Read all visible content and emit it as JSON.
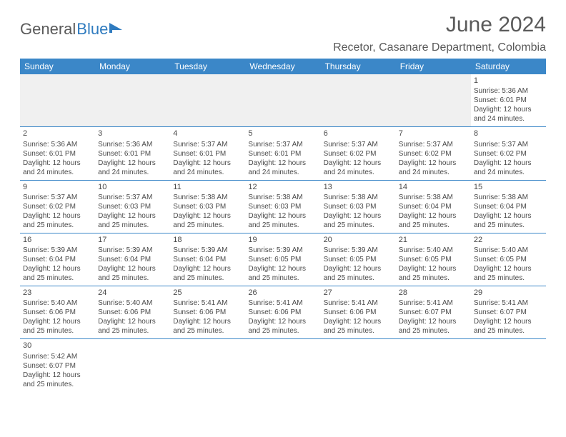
{
  "logo": {
    "text1": "General",
    "text2": "Blue"
  },
  "title": "June 2024",
  "location": "Recetor, Casanare Department, Colombia",
  "colors": {
    "header_bg": "#3b87c8",
    "header_text": "#ffffff",
    "text": "#5a5a5a",
    "cell_text": "#4a4a4a",
    "logo_gray": "#5a5a5a",
    "logo_blue": "#2f7bbf",
    "border": "#3b87c8",
    "empty_bg": "#f0f0f0"
  },
  "weekdays": [
    "Sunday",
    "Monday",
    "Tuesday",
    "Wednesday",
    "Thursday",
    "Friday",
    "Saturday"
  ],
  "weeks": [
    [
      null,
      null,
      null,
      null,
      null,
      null,
      {
        "n": "1",
        "sr": "Sunrise: 5:36 AM",
        "ss": "Sunset: 6:01 PM",
        "d1": "Daylight: 12 hours",
        "d2": "and 24 minutes."
      }
    ],
    [
      {
        "n": "2",
        "sr": "Sunrise: 5:36 AM",
        "ss": "Sunset: 6:01 PM",
        "d1": "Daylight: 12 hours",
        "d2": "and 24 minutes."
      },
      {
        "n": "3",
        "sr": "Sunrise: 5:36 AM",
        "ss": "Sunset: 6:01 PM",
        "d1": "Daylight: 12 hours",
        "d2": "and 24 minutes."
      },
      {
        "n": "4",
        "sr": "Sunrise: 5:37 AM",
        "ss": "Sunset: 6:01 PM",
        "d1": "Daylight: 12 hours",
        "d2": "and 24 minutes."
      },
      {
        "n": "5",
        "sr": "Sunrise: 5:37 AM",
        "ss": "Sunset: 6:01 PM",
        "d1": "Daylight: 12 hours",
        "d2": "and 24 minutes."
      },
      {
        "n": "6",
        "sr": "Sunrise: 5:37 AM",
        "ss": "Sunset: 6:02 PM",
        "d1": "Daylight: 12 hours",
        "d2": "and 24 minutes."
      },
      {
        "n": "7",
        "sr": "Sunrise: 5:37 AM",
        "ss": "Sunset: 6:02 PM",
        "d1": "Daylight: 12 hours",
        "d2": "and 24 minutes."
      },
      {
        "n": "8",
        "sr": "Sunrise: 5:37 AM",
        "ss": "Sunset: 6:02 PM",
        "d1": "Daylight: 12 hours",
        "d2": "and 24 minutes."
      }
    ],
    [
      {
        "n": "9",
        "sr": "Sunrise: 5:37 AM",
        "ss": "Sunset: 6:02 PM",
        "d1": "Daylight: 12 hours",
        "d2": "and 25 minutes."
      },
      {
        "n": "10",
        "sr": "Sunrise: 5:37 AM",
        "ss": "Sunset: 6:03 PM",
        "d1": "Daylight: 12 hours",
        "d2": "and 25 minutes."
      },
      {
        "n": "11",
        "sr": "Sunrise: 5:38 AM",
        "ss": "Sunset: 6:03 PM",
        "d1": "Daylight: 12 hours",
        "d2": "and 25 minutes."
      },
      {
        "n": "12",
        "sr": "Sunrise: 5:38 AM",
        "ss": "Sunset: 6:03 PM",
        "d1": "Daylight: 12 hours",
        "d2": "and 25 minutes."
      },
      {
        "n": "13",
        "sr": "Sunrise: 5:38 AM",
        "ss": "Sunset: 6:03 PM",
        "d1": "Daylight: 12 hours",
        "d2": "and 25 minutes."
      },
      {
        "n": "14",
        "sr": "Sunrise: 5:38 AM",
        "ss": "Sunset: 6:04 PM",
        "d1": "Daylight: 12 hours",
        "d2": "and 25 minutes."
      },
      {
        "n": "15",
        "sr": "Sunrise: 5:38 AM",
        "ss": "Sunset: 6:04 PM",
        "d1": "Daylight: 12 hours",
        "d2": "and 25 minutes."
      }
    ],
    [
      {
        "n": "16",
        "sr": "Sunrise: 5:39 AM",
        "ss": "Sunset: 6:04 PM",
        "d1": "Daylight: 12 hours",
        "d2": "and 25 minutes."
      },
      {
        "n": "17",
        "sr": "Sunrise: 5:39 AM",
        "ss": "Sunset: 6:04 PM",
        "d1": "Daylight: 12 hours",
        "d2": "and 25 minutes."
      },
      {
        "n": "18",
        "sr": "Sunrise: 5:39 AM",
        "ss": "Sunset: 6:04 PM",
        "d1": "Daylight: 12 hours",
        "d2": "and 25 minutes."
      },
      {
        "n": "19",
        "sr": "Sunrise: 5:39 AM",
        "ss": "Sunset: 6:05 PM",
        "d1": "Daylight: 12 hours",
        "d2": "and 25 minutes."
      },
      {
        "n": "20",
        "sr": "Sunrise: 5:39 AM",
        "ss": "Sunset: 6:05 PM",
        "d1": "Daylight: 12 hours",
        "d2": "and 25 minutes."
      },
      {
        "n": "21",
        "sr": "Sunrise: 5:40 AM",
        "ss": "Sunset: 6:05 PM",
        "d1": "Daylight: 12 hours",
        "d2": "and 25 minutes."
      },
      {
        "n": "22",
        "sr": "Sunrise: 5:40 AM",
        "ss": "Sunset: 6:05 PM",
        "d1": "Daylight: 12 hours",
        "d2": "and 25 minutes."
      }
    ],
    [
      {
        "n": "23",
        "sr": "Sunrise: 5:40 AM",
        "ss": "Sunset: 6:06 PM",
        "d1": "Daylight: 12 hours",
        "d2": "and 25 minutes."
      },
      {
        "n": "24",
        "sr": "Sunrise: 5:40 AM",
        "ss": "Sunset: 6:06 PM",
        "d1": "Daylight: 12 hours",
        "d2": "and 25 minutes."
      },
      {
        "n": "25",
        "sr": "Sunrise: 5:41 AM",
        "ss": "Sunset: 6:06 PM",
        "d1": "Daylight: 12 hours",
        "d2": "and 25 minutes."
      },
      {
        "n": "26",
        "sr": "Sunrise: 5:41 AM",
        "ss": "Sunset: 6:06 PM",
        "d1": "Daylight: 12 hours",
        "d2": "and 25 minutes."
      },
      {
        "n": "27",
        "sr": "Sunrise: 5:41 AM",
        "ss": "Sunset: 6:06 PM",
        "d1": "Daylight: 12 hours",
        "d2": "and 25 minutes."
      },
      {
        "n": "28",
        "sr": "Sunrise: 5:41 AM",
        "ss": "Sunset: 6:07 PM",
        "d1": "Daylight: 12 hours",
        "d2": "and 25 minutes."
      },
      {
        "n": "29",
        "sr": "Sunrise: 5:41 AM",
        "ss": "Sunset: 6:07 PM",
        "d1": "Daylight: 12 hours",
        "d2": "and 25 minutes."
      }
    ],
    [
      {
        "n": "30",
        "sr": "Sunrise: 5:42 AM",
        "ss": "Sunset: 6:07 PM",
        "d1": "Daylight: 12 hours",
        "d2": "and 25 minutes."
      },
      null,
      null,
      null,
      null,
      null,
      null
    ]
  ]
}
